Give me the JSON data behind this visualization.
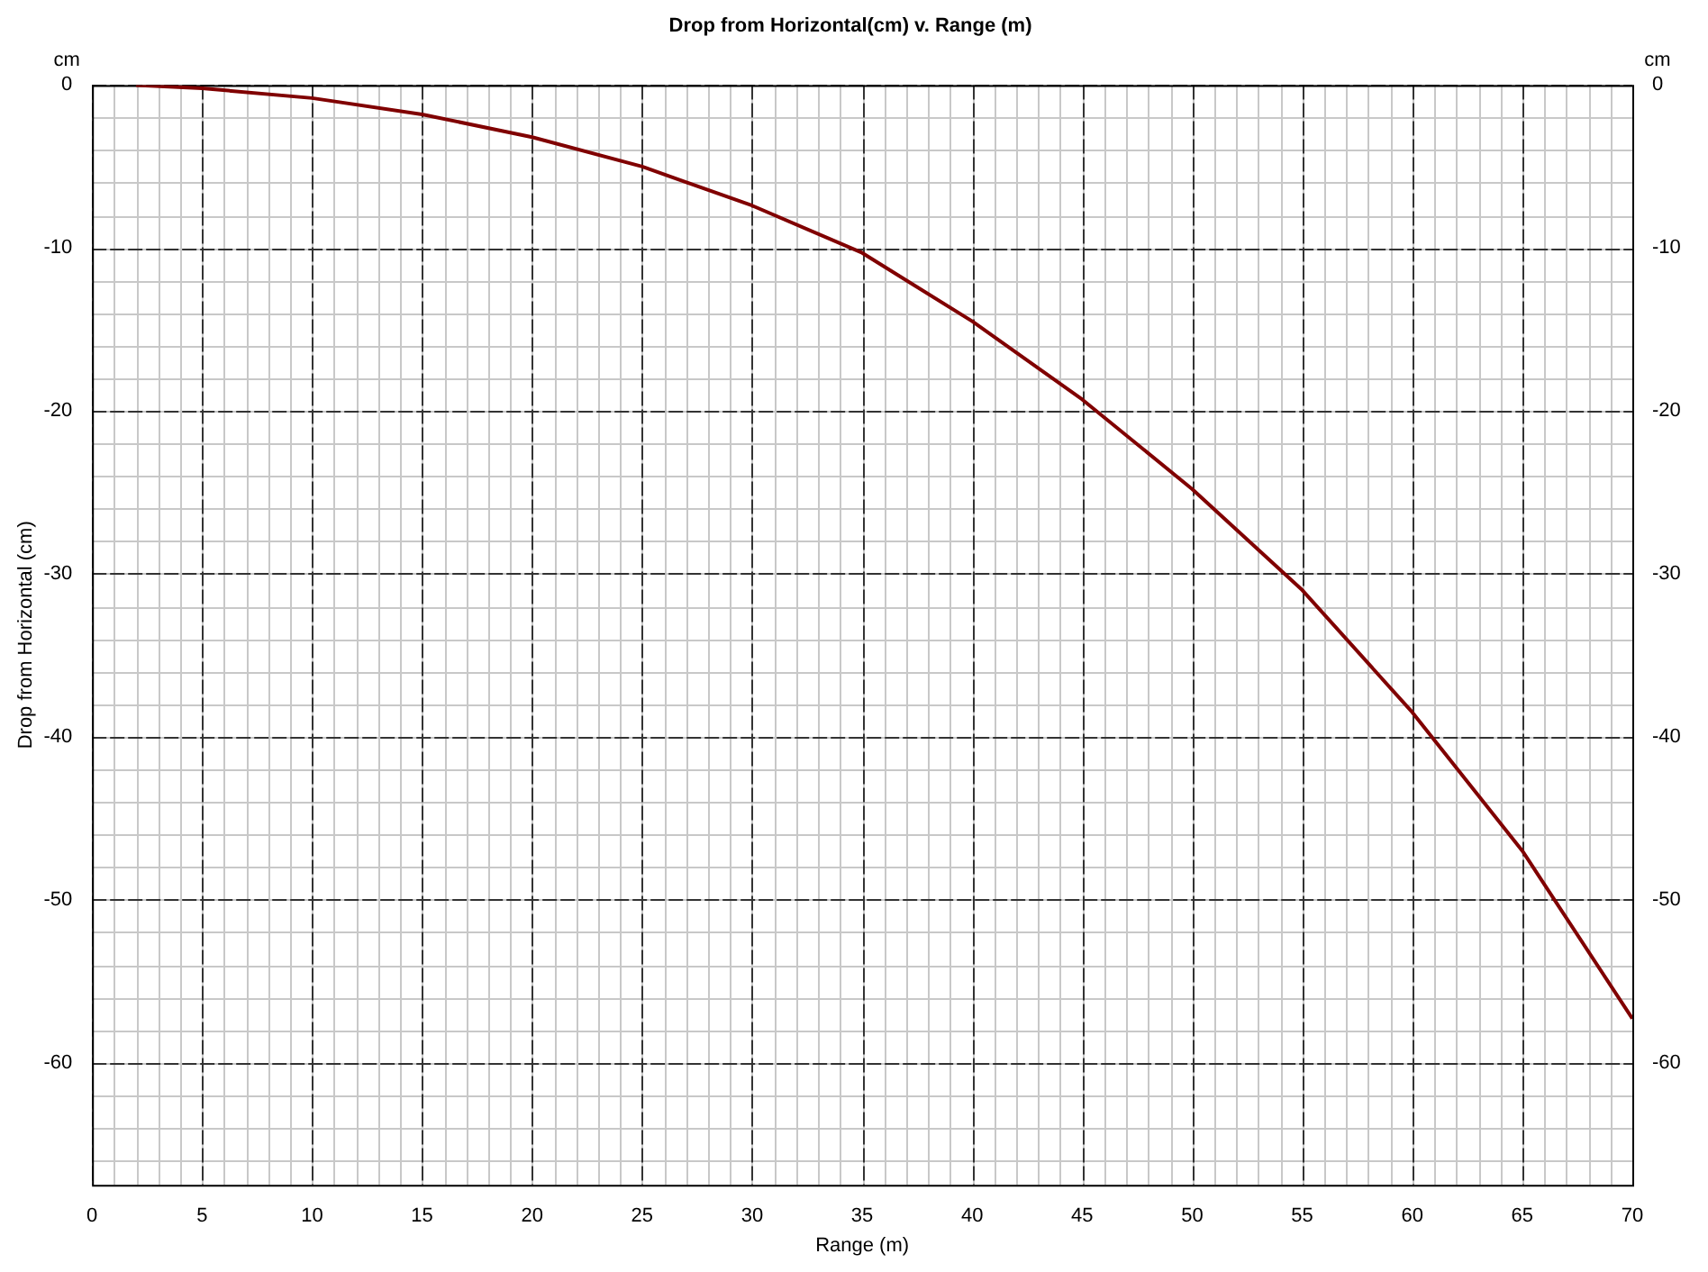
{
  "chart_data": {
    "type": "line",
    "title": "Drop from Horizontal(cm) v. Range (m)",
    "xlabel": "Range (m)",
    "ylabel": "Drop from Horizontal (cm)",
    "annotations": [
      "cm",
      "cm"
    ],
    "series": [
      {
        "color": "#800000",
        "x": [
          2,
          5,
          10,
          15,
          20,
          25,
          30,
          35,
          40,
          45,
          50,
          55,
          60,
          65,
          70
        ],
        "values": [
          0,
          -0.2,
          -0.8,
          -1.8,
          -3.2,
          -5,
          -7.4,
          -10.3,
          -14.5,
          -19.3,
          -24.8,
          -31,
          -38.5,
          -47,
          -57.3
        ]
      }
    ],
    "xlim": [
      0,
      70
    ],
    "xticks": [
      0,
      5,
      10,
      15,
      20,
      25,
      30,
      35,
      40,
      45,
      50,
      55,
      60,
      65,
      70
    ],
    "ylim": [
      -67.5,
      0
    ],
    "yticks": [
      0,
      -10,
      -20,
      -30,
      -40,
      -50,
      -60
    ],
    "y2lim": [
      -67.5,
      0
    ],
    "y2ticks": [
      0,
      -10,
      -20,
      -30,
      -40,
      -50,
      -60
    ],
    "grid": true,
    "legend": false,
    "marker": "none",
    "line_style": "solid"
  }
}
